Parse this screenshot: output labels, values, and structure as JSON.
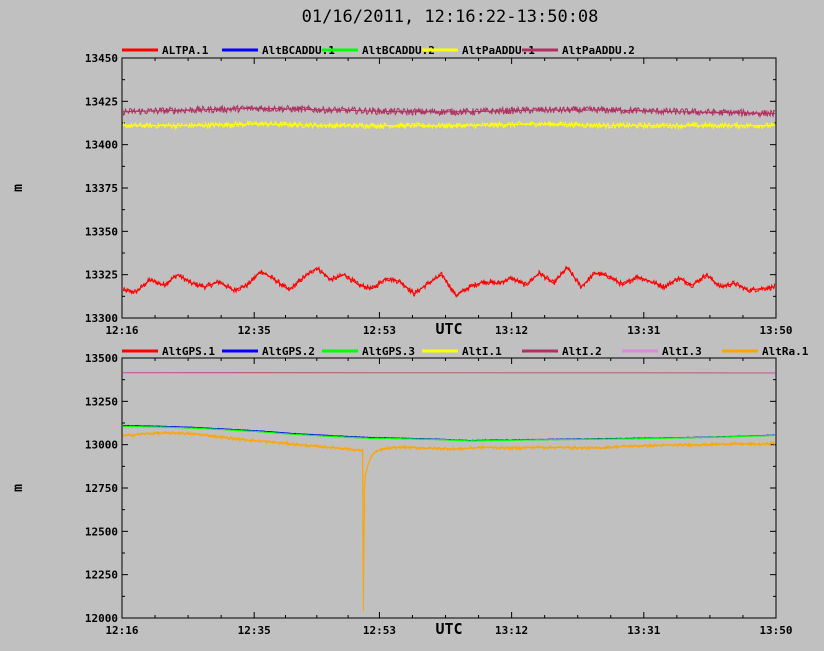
{
  "title": "01/16/2011, 12:16:22-13:50:08",
  "chart_data": [
    {
      "type": "line",
      "ylabel": "m",
      "xlabel": "UTC",
      "x_tick_labels": [
        "12:16",
        "12:35",
        "12:53",
        "13:12",
        "13:31",
        "13:50"
      ],
      "x_tick_minutes": [
        0,
        19,
        37,
        56,
        75,
        94
      ],
      "xlim": [
        0,
        94
      ],
      "ylim": [
        13300,
        13450
      ],
      "y_ticks": [
        13300,
        13325,
        13350,
        13375,
        13400,
        13425,
        13450
      ],
      "grid": false,
      "legend": "top",
      "series": [
        {
          "name": "ALTPA.1",
          "color": "#ff0000",
          "noise": 1.6,
          "x": [
            0,
            2,
            4,
            6,
            8,
            10,
            12,
            14,
            16,
            18,
            20,
            22,
            24,
            26,
            28,
            30,
            32,
            34,
            36,
            38,
            40,
            42,
            44,
            46,
            48,
            50,
            52,
            54,
            56,
            58,
            60,
            62,
            64,
            66,
            68,
            70,
            72,
            74,
            76,
            78,
            80,
            82,
            84,
            86,
            88,
            90,
            92,
            94
          ],
          "values": [
            13316,
            13315,
            13322,
            13319,
            13325,
            13320,
            13318,
            13321,
            13316,
            13319,
            13327,
            13322,
            13316,
            13323,
            13329,
            13322,
            13325,
            13319,
            13317,
            13323,
            13321,
            13314,
            13320,
            13325,
            13313,
            13318,
            13321,
            13320,
            13323,
            13319,
            13326,
            13320,
            13329,
            13318,
            13326,
            13324,
            13319,
            13324,
            13321,
            13318,
            13323,
            13319,
            13325,
            13318,
            13320,
            13316,
            13317,
            13318
          ]
        },
        {
          "name": "AltBCADDU.1",
          "color": "#0000ff",
          "hidden": true,
          "x": [
            0,
            94
          ],
          "values": [
            13419,
            13419
          ]
        },
        {
          "name": "AltBCADDU.2",
          "color": "#00ff00",
          "hidden": true,
          "x": [
            0,
            94
          ],
          "values": [
            13419,
            13419
          ]
        },
        {
          "name": "AltPaADDU.1",
          "color": "#ffff00",
          "noise": 1.6,
          "x": [
            0,
            10,
            20,
            30,
            40,
            50,
            60,
            70,
            80,
            94
          ],
          "values": [
            13411,
            13411,
            13412,
            13411,
            13411,
            13411,
            13412,
            13411,
            13411,
            13411
          ]
        },
        {
          "name": "AltPaADDU.2",
          "color": "#b03060",
          "noise": 2.0,
          "x": [
            0,
            10,
            20,
            30,
            40,
            50,
            60,
            70,
            80,
            94
          ],
          "values": [
            13419,
            13420,
            13421,
            13420,
            13419,
            13419,
            13420,
            13420,
            13419,
            13418
          ]
        }
      ]
    },
    {
      "type": "line",
      "ylabel": "m",
      "xlabel": "UTC",
      "x_tick_labels": [
        "12:16",
        "12:35",
        "12:53",
        "13:12",
        "13:31",
        "13:50"
      ],
      "x_tick_minutes": [
        0,
        19,
        37,
        56,
        75,
        94
      ],
      "xlim": [
        0,
        94
      ],
      "ylim": [
        12000,
        13500
      ],
      "y_ticks": [
        12000,
        12250,
        12500,
        12750,
        13000,
        13250,
        13500
      ],
      "grid": false,
      "legend": "top",
      "series": [
        {
          "name": "AltGPS.1",
          "color": "#ff0000",
          "hidden": true,
          "x": [
            0,
            94
          ],
          "values": [
            13100,
            13050
          ]
        },
        {
          "name": "AltGPS.2",
          "color": "#0000ff",
          "noise": 2,
          "x": [
            0,
            5,
            10,
            15,
            20,
            25,
            30,
            35,
            40,
            45,
            50,
            55,
            60,
            65,
            70,
            75,
            80,
            85,
            90,
            94
          ],
          "values": [
            13110,
            13106,
            13100,
            13090,
            13078,
            13063,
            13052,
            13042,
            13037,
            13032,
            13024,
            13027,
            13030,
            13032,
            13035,
            13037,
            13040,
            13044,
            13050,
            13055
          ]
        },
        {
          "name": "AltGPS.3",
          "color": "#00ff00",
          "noise": 2,
          "x": [
            0,
            5,
            10,
            15,
            20,
            25,
            30,
            35,
            40,
            45,
            50,
            55,
            60,
            65,
            70,
            75,
            80,
            85,
            90,
            94
          ],
          "values": [
            13106,
            13102,
            13096,
            13086,
            13074,
            13059,
            13048,
            13038,
            13034,
            13030,
            13022,
            13025,
            13028,
            13030,
            13033,
            13035,
            13039,
            13043,
            13049,
            13053
          ]
        },
        {
          "name": "AltI.1",
          "color": "#ffff00",
          "hidden": true,
          "x": [
            0,
            94
          ],
          "values": [
            13410,
            13410
          ]
        },
        {
          "name": "AltI.2",
          "color": "#b03060",
          "noise": 0,
          "x": [
            0,
            94
          ],
          "values": [
            13415,
            13413
          ]
        },
        {
          "name": "AltI.3",
          "color": "#dd88dd",
          "noise": 0,
          "x": [
            0,
            94
          ],
          "values": [
            13412,
            13410
          ]
        },
        {
          "name": "AltRa.1",
          "color": "#ffa500",
          "noise": 9,
          "x": [
            0,
            4,
            8,
            12,
            16,
            20,
            24,
            28,
            32,
            34.6,
            34.7,
            34.85,
            35,
            35.5,
            36,
            37,
            38,
            40,
            44,
            48,
            52,
            56,
            60,
            64,
            68,
            72,
            76,
            80,
            84,
            88,
            92,
            94
          ],
          "values": [
            13050,
            13065,
            13068,
            13055,
            13035,
            13020,
            13005,
            12990,
            12978,
            12965,
            12040,
            12740,
            12830,
            12900,
            12945,
            12968,
            12978,
            12985,
            12980,
            12975,
            12985,
            12980,
            12985,
            12983,
            12980,
            12990,
            12995,
            12998,
            13000,
            13005,
            13002,
            13010
          ]
        }
      ]
    }
  ]
}
